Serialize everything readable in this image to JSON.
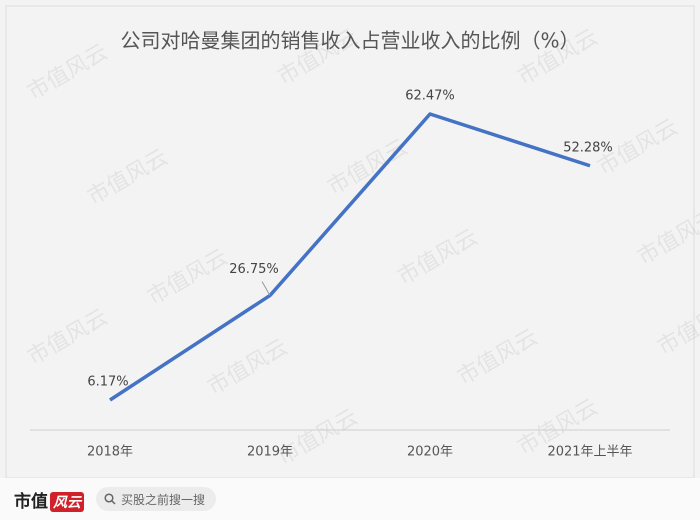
{
  "chart_data": {
    "type": "line",
    "title": "公司对哈曼集团的销售收入占营业收入的比例（%）",
    "categories": [
      "2018年",
      "2019年",
      "2020年",
      "2021年上半年"
    ],
    "series": [
      {
        "name": "比例",
        "color": "#4472c4",
        "values": [
          6.17,
          26.75,
          62.47,
          52.28
        ],
        "value_labels": [
          "6.17%",
          "26.75%",
          "62.47%",
          "52.28%"
        ]
      }
    ]
  },
  "watermark": "市值风云",
  "footer": {
    "logo_text": "市值",
    "logo_mark": "风云",
    "search_placeholder": "买股之前搜一搜"
  }
}
